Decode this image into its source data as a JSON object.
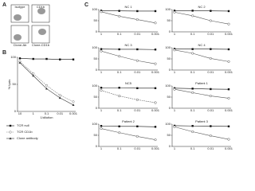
{
  "panel_labels": [
    "A",
    "B",
    "C"
  ],
  "flow": {
    "labels": [
      "Isotype",
      "CD1b",
      "Clone-Ab",
      "Clone-CD1b"
    ]
  },
  "chart_data": [
    {
      "type": "line",
      "categories": [
        "10",
        "1",
        "0.1",
        "0.01",
        "0.001"
      ],
      "xlabel": "1/dilution",
      "ylabel": "% lysis",
      "ylim": [
        0,
        100
      ],
      "yticks": [
        0,
        50,
        100
      ],
      "legend": "bottom",
      "series": [
        {
          "name": "TCR null",
          "color": "#111111",
          "marker": "square",
          "dash": false,
          "values": [
            98,
            97,
            97,
            96,
            96
          ]
        },
        {
          "name": "TCR CD1b",
          "color": "#777777",
          "marker": "circle",
          "dash": true,
          "values": [
            92,
            70,
            48,
            30,
            18
          ]
        },
        {
          "name": "Clone antibody",
          "color": "#333333",
          "marker": "triangle",
          "dash": false,
          "values": [
            90,
            66,
            42,
            25,
            12
          ]
        }
      ]
    },
    {
      "type": "line",
      "title": "NC 1",
      "categories": [
        "1",
        "0.1",
        "0.01",
        "0.001"
      ],
      "ylim": [
        0,
        100
      ],
      "yticks": [
        0,
        50,
        100
      ],
      "series": [
        {
          "color": "#111111",
          "marker": "square",
          "dash": false,
          "values": [
            95,
            94,
            93,
            93
          ]
        },
        {
          "color": "#555555",
          "marker": "circle",
          "dash": false,
          "values": [
            90,
            70,
            55,
            40
          ]
        }
      ]
    },
    {
      "type": "line",
      "title": "NC 2",
      "categories": [
        "1",
        "0.1",
        "0.01",
        "0.001"
      ],
      "ylim": [
        0,
        100
      ],
      "yticks": [
        0,
        50,
        100
      ],
      "series": [
        {
          "color": "#111111",
          "marker": "square",
          "dash": false,
          "values": [
            95,
            95,
            94,
            93
          ]
        },
        {
          "color": "#555555",
          "marker": "circle",
          "dash": false,
          "values": [
            88,
            72,
            50,
            35
          ]
        }
      ]
    },
    {
      "type": "line",
      "title": "NC 3",
      "categories": [
        "1",
        "0.1",
        "0.01",
        "0.001"
      ],
      "ylim": [
        0,
        100
      ],
      "yticks": [
        0,
        50,
        100
      ],
      "series": [
        {
          "color": "#111111",
          "marker": "square",
          "dash": false,
          "values": [
            94,
            93,
            93,
            92
          ]
        },
        {
          "color": "#555555",
          "marker": "circle",
          "dash": false,
          "values": [
            85,
            62,
            42,
            28
          ]
        }
      ]
    },
    {
      "type": "line",
      "title": "NC 4",
      "categories": [
        "1",
        "0.1",
        "0.01",
        "0.001"
      ],
      "ylim": [
        0,
        100
      ],
      "yticks": [
        0,
        50,
        100
      ],
      "series": [
        {
          "color": "#111111",
          "marker": "square",
          "dash": false,
          "values": [
            95,
            94,
            94,
            93
          ]
        },
        {
          "color": "#555555",
          "marker": "circle",
          "dash": false,
          "values": [
            90,
            75,
            52,
            38
          ]
        }
      ]
    },
    {
      "type": "line",
      "title": "NC5",
      "categories": [
        "1",
        "0.1",
        "0.01",
        "0.001"
      ],
      "ylim": [
        0,
        100
      ],
      "yticks": [
        0,
        50,
        100
      ],
      "series": [
        {
          "color": "#111111",
          "marker": "square",
          "dash": false,
          "values": [
            92,
            92,
            90,
            90
          ]
        },
        {
          "color": "#555555",
          "marker": "circle",
          "dash": true,
          "values": [
            80,
            55,
            38,
            25
          ]
        }
      ]
    },
    {
      "type": "line",
      "title": "Patient 1",
      "categories": [
        "1",
        "0.1",
        "0.01",
        "0.001"
      ],
      "ylim": [
        0,
        100
      ],
      "yticks": [
        0,
        50,
        100
      ],
      "series": [
        {
          "color": "#111111",
          "marker": "square",
          "dash": false,
          "values": [
            90,
            88,
            86,
            85
          ]
        },
        {
          "color": "#555555",
          "marker": "circle",
          "dash": false,
          "values": [
            85,
            70,
            55,
            45
          ]
        }
      ]
    },
    {
      "type": "line",
      "title": "Patient 2",
      "categories": [
        "1",
        "0.1",
        "0.01",
        "0.001"
      ],
      "ylim": [
        0,
        100
      ],
      "yticks": [
        0,
        50,
        100
      ],
      "series": [
        {
          "color": "#111111",
          "marker": "square",
          "dash": false,
          "values": [
            92,
            90,
            90,
            88
          ]
        },
        {
          "color": "#555555",
          "marker": "circle",
          "dash": false,
          "values": [
            80,
            62,
            45,
            30
          ]
        }
      ]
    },
    {
      "type": "line",
      "title": "Patient 3",
      "categories": [
        "1",
        "0.1",
        "0.01",
        "0.001"
      ],
      "ylim": [
        0,
        100
      ],
      "yticks": [
        0,
        50,
        100
      ],
      "series": [
        {
          "color": "#111111",
          "marker": "square",
          "dash": false,
          "values": [
            93,
            92,
            91,
            90
          ]
        },
        {
          "color": "#555555",
          "marker": "circle",
          "dash": false,
          "values": [
            88,
            66,
            48,
            32
          ]
        }
      ]
    }
  ]
}
